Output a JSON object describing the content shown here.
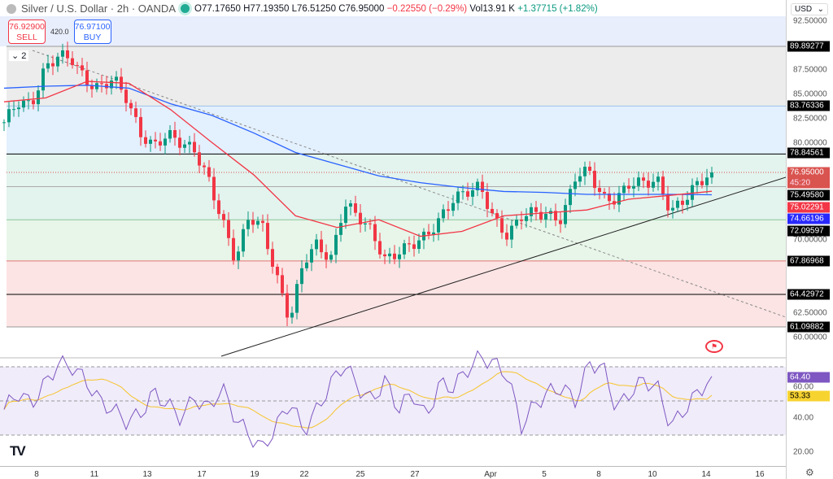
{
  "header": {
    "title": "Silver / U.S. Dollar · 2h · OANDA",
    "open": "O77.17650",
    "high": "H77.19350",
    "low": "L76.51250",
    "close": "C76.95000",
    "change": "−0.22550 (−0.29%)",
    "volume": "Vol13.91 K",
    "vol_change": "+1.37715 (+1.82%)"
  },
  "trade": {
    "sell_price": "76.92900",
    "sell_label": "SELL",
    "spread": "420.0",
    "buy_price": "76.97100",
    "buy_label": "BUY"
  },
  "collapse_count": "2",
  "currency": "USD",
  "colors": {
    "up": "#089981",
    "down": "#f23645",
    "ma_fast": "#f23645",
    "ma_slow": "#2962ff",
    "rsi": "#7e57c2",
    "rsi_ma": "#f7c42a"
  },
  "price_ticks": [
    "92.50000",
    "87.50000",
    "85.00000",
    "82.50000",
    "80.00000",
    "70.00000",
    "62.50000",
    "60.00000"
  ],
  "price_labels": [
    {
      "value": "89.89277",
      "bg": "#000000"
    },
    {
      "value": "83.76336",
      "bg": "#000000"
    },
    {
      "value": "78.84561",
      "bg": "#000000"
    },
    {
      "value": "76.95000",
      "bg": "#d9534f"
    },
    {
      "value": "75.49580",
      "bg": "#000000"
    },
    {
      "value": "75.02291",
      "bg": "#f23645"
    },
    {
      "value": "74.66196",
      "bg": "#2929ff"
    },
    {
      "value": "72.09597",
      "bg": "#000000"
    },
    {
      "value": "67.86968",
      "bg": "#000000"
    },
    {
      "value": "64.42972",
      "bg": "#000000"
    },
    {
      "value": "61.09882",
      "bg": "#000000"
    }
  ],
  "countdown": "45:20",
  "rsi_ticks": [
    "60.00",
    "40.00",
    "20.00"
  ],
  "rsi_labels": {
    "rsi": "64.40",
    "ma": "53.33"
  },
  "x_ticks": [
    "8",
    "11",
    "13",
    "17",
    "19",
    "22",
    "25",
    "27",
    "Apr",
    "5",
    "8",
    "10",
    "14",
    "16"
  ],
  "chart_data": {
    "type": "candlestick",
    "levels": [
      89.89277,
      83.76336,
      78.84561,
      75.4958,
      72.09597,
      67.86968,
      64.42972,
      61.09882
    ],
    "close_path": [
      82.1,
      84.2,
      83.8,
      87.6,
      89.0,
      88.6,
      86.3,
      85.5,
      86.7,
      84.6,
      80.9,
      79.6,
      80.9,
      80.0,
      79.2,
      76.3,
      72.1,
      67.9,
      72.5,
      71.3,
      66.3,
      61.7,
      67.9,
      69.6,
      67.9,
      73.8,
      72.5,
      70.9,
      67.9,
      68.8,
      69.6,
      70.4,
      72.1,
      74.2,
      75.0,
      75.5,
      72.1,
      70.4,
      72.5,
      72.9,
      72.5,
      72.1,
      76.7,
      77.1,
      74.2,
      74.2,
      75.9,
      75.9,
      76.1,
      72.9,
      74.2,
      75.9,
      76.95
    ],
    "ma_fast": [
      84.2,
      84.6,
      86.3,
      86.1,
      83.4,
      80.0,
      76.7,
      72.5,
      71.3,
      72.1,
      70.4,
      70.9,
      72.5,
      72.8,
      73.1,
      74.2,
      74.6,
      75.02
    ],
    "ma_slow": [
      85.6,
      85.8,
      85.9,
      85.6,
      84.0,
      82.8,
      81.0,
      79.0,
      77.8,
      76.6,
      75.9,
      75.4,
      75.0,
      74.9,
      74.7,
      74.7,
      74.7,
      74.66
    ],
    "rsi": [
      45,
      55,
      48,
      60,
      72,
      70,
      62,
      50,
      45,
      38,
      42,
      55,
      48,
      40,
      52,
      45,
      58,
      40,
      30,
      22,
      35,
      50,
      32,
      45,
      60,
      72,
      58,
      50,
      62,
      45,
      55,
      40,
      60,
      58,
      68,
      76,
      72,
      65,
      35,
      48,
      55,
      58,
      50,
      72,
      70,
      45,
      55,
      62,
      58,
      35,
      45,
      55,
      64.4
    ],
    "price_range": [
      58,
      93.5
    ],
    "rsi_range": [
      15,
      85
    ]
  }
}
